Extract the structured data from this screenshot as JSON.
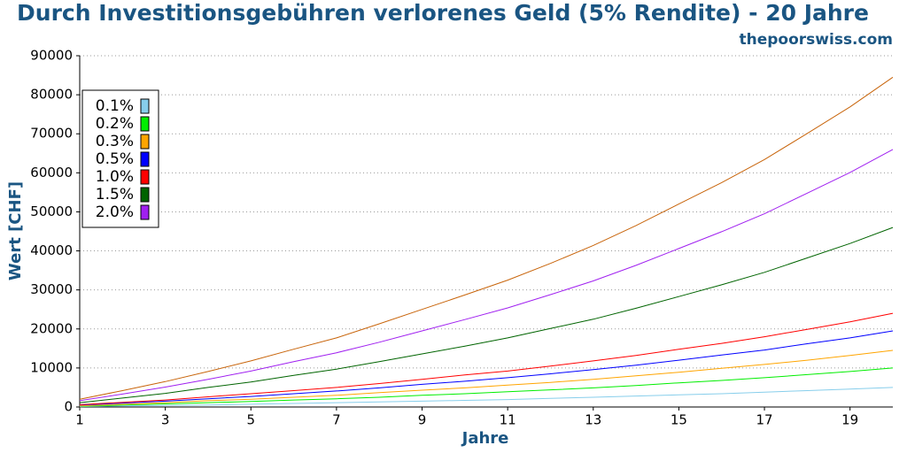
{
  "chart_data": {
    "type": "line",
    "title": "Durch Investitionsgebühren verlorenes Geld (5% Rendite) - 20 Jahre",
    "subtitle": "thepoorswiss.com",
    "x_label": "Jahre",
    "y_label": "Wert [CHF]",
    "x": [
      1,
      2,
      3,
      4,
      5,
      6,
      7,
      8,
      9,
      10,
      11,
      12,
      13,
      14,
      15,
      16,
      17,
      18,
      19,
      20
    ],
    "xlim": [
      1,
      20
    ],
    "xticks": [
      1,
      3,
      5,
      7,
      9,
      11,
      13,
      15,
      17,
      19
    ],
    "ylim": [
      0,
      90000
    ],
    "yticks": [
      0,
      10000,
      20000,
      30000,
      40000,
      50000,
      60000,
      70000,
      80000,
      90000
    ],
    "grid": true,
    "legend": "upper left",
    "series": [
      {
        "name": "0.1%",
        "color": "#87ceeb",
        "values": [
          100,
          300,
          400,
          500,
          700,
          900,
          1100,
          1300,
          1500,
          1700,
          1900,
          2200,
          2500,
          2800,
          3100,
          3400,
          3800,
          4200,
          4600,
          5000
        ]
      },
      {
        "name": "0.2%",
        "color": "#00ee00",
        "values": [
          200,
          500,
          800,
          1100,
          1400,
          1800,
          2100,
          2500,
          3000,
          3400,
          3900,
          4400,
          4900,
          5500,
          6200,
          6800,
          7500,
          8300,
          9100,
          10000
        ]
      },
      {
        "name": "0.3%",
        "color": "#ffa500",
        "values": [
          300,
          700,
          1100,
          1600,
          2000,
          2500,
          3000,
          3700,
          4300,
          4900,
          5600,
          6300,
          7100,
          8000,
          8900,
          9900,
          10900,
          12000,
          13200,
          14500
        ]
      },
      {
        "name": "0.5%",
        "color": "#0000ff",
        "values": [
          500,
          1000,
          1500,
          2100,
          2700,
          3400,
          4100,
          4900,
          5800,
          6600,
          7500,
          8500,
          9600,
          10700,
          12000,
          13300,
          14600,
          16200,
          17700,
          19500
        ]
      },
      {
        "name": "1.0%",
        "color": "#ff0000",
        "values": [
          600,
          1200,
          1800,
          2600,
          3400,
          4200,
          5000,
          6000,
          7100,
          8200,
          9200,
          10500,
          11800,
          13200,
          14800,
          16300,
          18000,
          19900,
          21800,
          24000
        ]
      },
      {
        "name": "1.5%",
        "color": "#006400",
        "values": [
          1100,
          2300,
          3500,
          5000,
          6400,
          8100,
          9700,
          11600,
          13600,
          15600,
          17700,
          20100,
          22500,
          25300,
          28300,
          31300,
          34500,
          38200,
          41900,
          46000
        ]
      },
      {
        "name": "2.0%",
        "color": "#a020f0",
        "values": [
          1600,
          3300,
          5100,
          7100,
          9200,
          11600,
          13900,
          16600,
          19500,
          22400,
          25400,
          28800,
          32300,
          36300,
          40600,
          44900,
          49500,
          54800,
          60100,
          66000
        ]
      },
      {
        "name": null,
        "color": "#c8640a",
        "values": [
          2000,
          4200,
          6500,
          9100,
          11800,
          14800,
          17700,
          21300,
          25000,
          28700,
          32500,
          36800,
          41400,
          46500,
          52000,
          57500,
          63400,
          70100,
          76900,
          84500
        ]
      }
    ]
  }
}
